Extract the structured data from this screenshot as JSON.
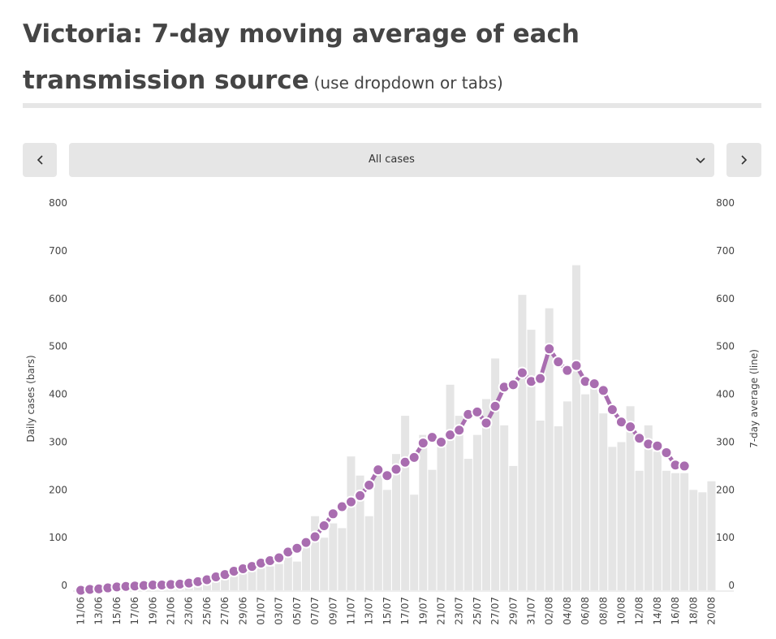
{
  "header": {
    "title": "Victoria: 7-day moving average of each transmission source",
    "subtitle": "(use dropdown or tabs)"
  },
  "controls": {
    "selected": "All cases"
  },
  "chart_data": {
    "type": "bar",
    "ylabel": "Daily cases (bars)",
    "y2label": "7-day average (line)",
    "categories": [
      "11/06",
      null,
      "13/06",
      null,
      "15/06",
      null,
      "17/06",
      null,
      "19/06",
      null,
      "21/06",
      null,
      "23/06",
      null,
      "25/06",
      null,
      "27/06",
      null,
      "29/06",
      null,
      "01/07",
      null,
      "03/07",
      null,
      "05/07",
      null,
      "07/07",
      null,
      "09/07",
      null,
      "11/07",
      null,
      "13/07",
      null,
      "15/07",
      null,
      "17/07",
      null,
      "19/07",
      null,
      "21/07",
      null,
      "23/07",
      null,
      "25/07",
      null,
      "27/07",
      null,
      "29/07",
      null,
      "31/07",
      null,
      "02/08",
      null,
      "04/08",
      null,
      "06/08",
      null,
      "08/08",
      null,
      "10/08",
      null,
      "12/08",
      null,
      "14/08",
      null,
      "16/08",
      null,
      "18/08",
      null,
      "20/08"
    ],
    "series": [
      {
        "type": "bar",
        "color": "#e5e5e5",
        "values": [
          3,
          2,
          4,
          5,
          6,
          6,
          8,
          9,
          7,
          9,
          10,
          11,
          12,
          14,
          16,
          20,
          25,
          32,
          38,
          42,
          48,
          50,
          55,
          70,
          60,
          100,
          155,
          110,
          140,
          130,
          280,
          240,
          155,
          255,
          210,
          285,
          365,
          200,
          325,
          252,
          300,
          430,
          365,
          275,
          325,
          400,
          485,
          345,
          260,
          618,
          545,
          355,
          590,
          343,
          395,
          680,
          410,
          440,
          370,
          300,
          310,
          385,
          250,
          345,
          290,
          250,
          245,
          245,
          210,
          205,
          228
        ]
      },
      {
        "type": "line",
        "axis": "y2",
        "color": "#a96db0",
        "values": [
          0,
          2,
          3,
          5,
          7,
          8,
          9,
          10,
          11,
          11,
          12,
          13,
          15,
          18,
          22,
          28,
          33,
          40,
          45,
          50,
          57,
          62,
          68,
          80,
          88,
          100,
          112,
          135,
          160,
          175,
          185,
          198,
          220,
          252,
          240,
          253,
          268,
          278,
          308,
          320,
          310,
          325,
          335,
          368,
          373,
          350,
          385,
          425,
          430,
          455,
          437,
          443,
          505,
          478,
          460,
          470,
          437,
          432,
          418,
          378,
          352,
          342,
          318,
          306,
          302,
          288,
          262,
          260,
          null,
          null,
          null
        ]
      }
    ],
    "ylim": [
      0,
      800
    ],
    "yticks": [
      0,
      100,
      200,
      300,
      400,
      500,
      600,
      700,
      800
    ],
    "y2lim": [
      0,
      800
    ],
    "y2ticks": [
      0,
      100,
      200,
      300,
      400,
      500,
      600,
      700,
      800
    ]
  }
}
